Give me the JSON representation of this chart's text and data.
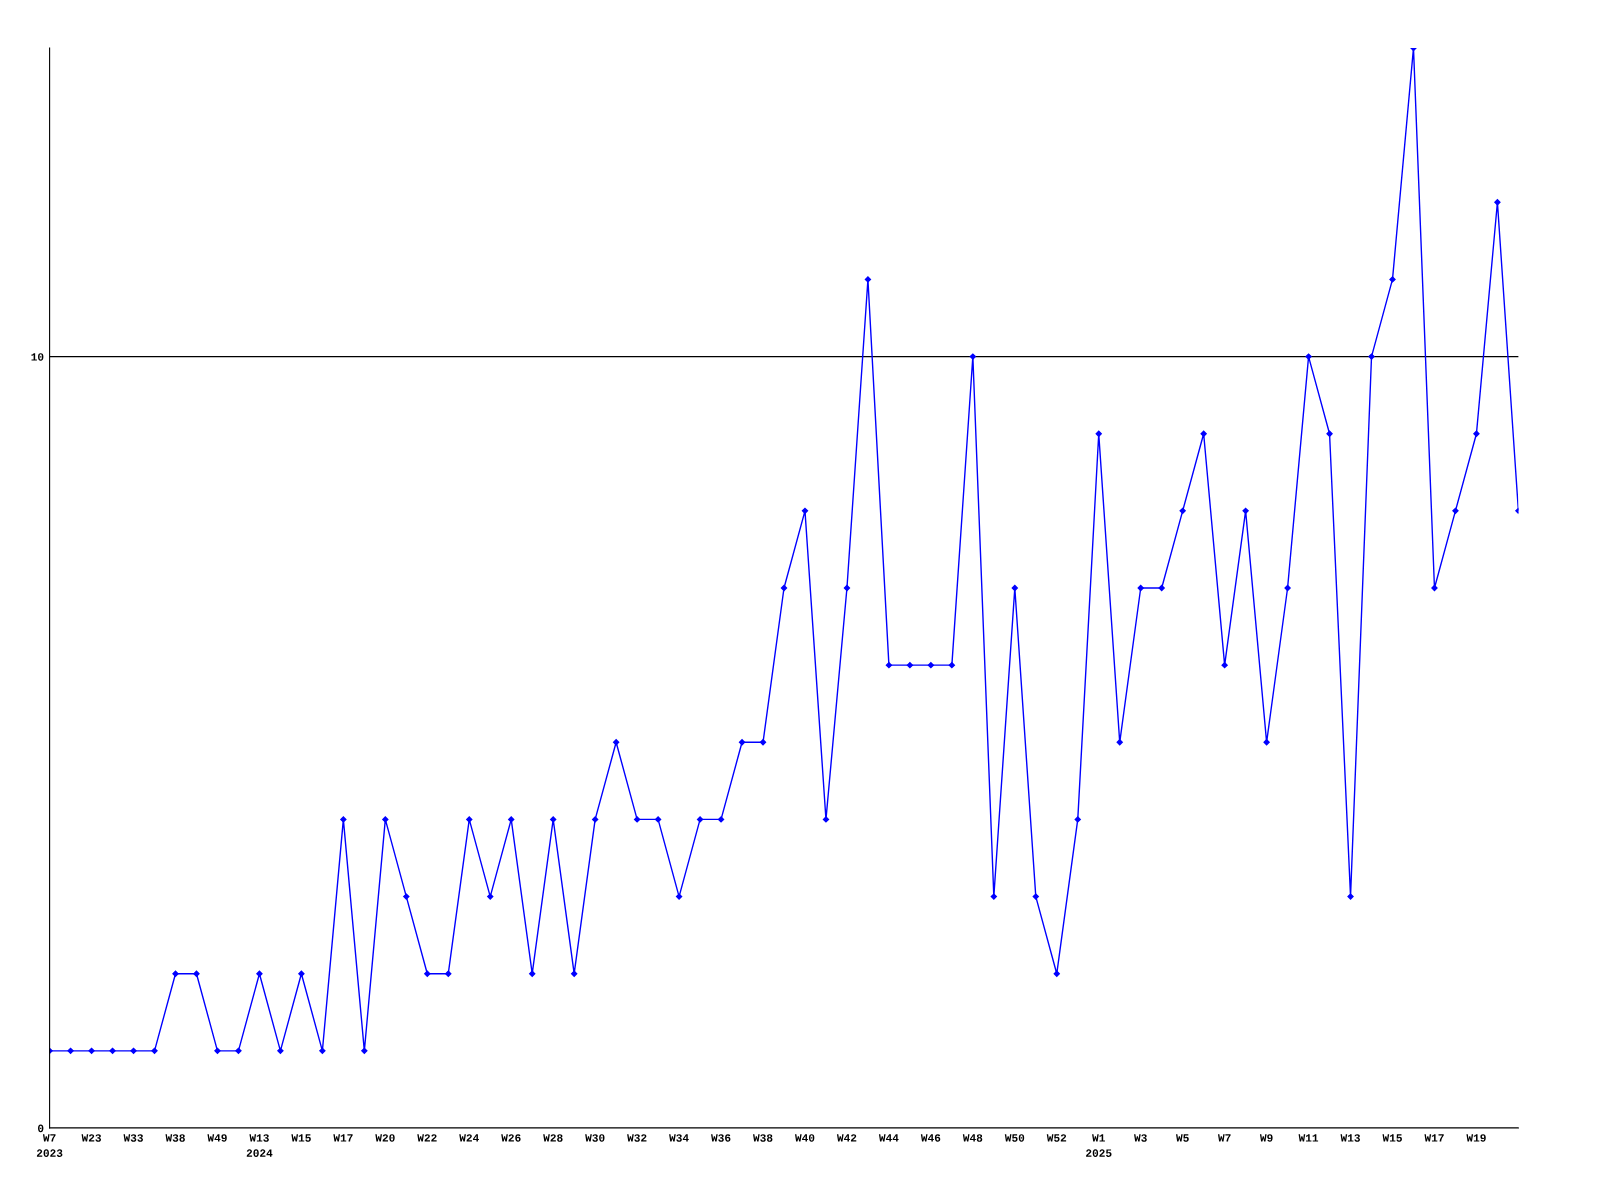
{
  "chart_data": {
    "type": "line",
    "categories": [
      "W7\n2023",
      null,
      "W23",
      null,
      "W33",
      null,
      "W38",
      null,
      "W49",
      null,
      "W13\n2024",
      null,
      "W15",
      null,
      "W17",
      null,
      "W20",
      null,
      "W22",
      null,
      "W24",
      null,
      "W26",
      null,
      "W28",
      null,
      "W30",
      null,
      "W32",
      null,
      "W34",
      null,
      "W36",
      null,
      "W38",
      null,
      "W40",
      null,
      "W42",
      null,
      "W44",
      null,
      "W46",
      null,
      "W48",
      null,
      "W50",
      null,
      "W52",
      null,
      "W1\n2025",
      null,
      "W3",
      null,
      "W5",
      null,
      "W7",
      null,
      "W9",
      null,
      "W11",
      null,
      "W13",
      null,
      "W15",
      null,
      "W17",
      null,
      "W19",
      null,
      null
    ],
    "series": [
      {
        "color": "#0000ff",
        "values": [
          1,
          1,
          1,
          1,
          1,
          1,
          2,
          2,
          1,
          1,
          2,
          1,
          2,
          1,
          4,
          1,
          4,
          3,
          2,
          2,
          4,
          3,
          4,
          2,
          4,
          2,
          4,
          5,
          4,
          4,
          3,
          4,
          4,
          5,
          5,
          7,
          8,
          4,
          7,
          11,
          6,
          6,
          6,
          6,
          10,
          3,
          7,
          3,
          2,
          4,
          9,
          5,
          7,
          7,
          8,
          9,
          6,
          8,
          5,
          7,
          10,
          9,
          3,
          10,
          11,
          14,
          7,
          8,
          9,
          12,
          8
        ]
      }
    ],
    "ylim": [
      0,
      14
    ],
    "yticks": [
      0,
      10
    ],
    "grid": "y",
    "marker": "diamond",
    "line_style": "solid",
    "legend": false
  }
}
